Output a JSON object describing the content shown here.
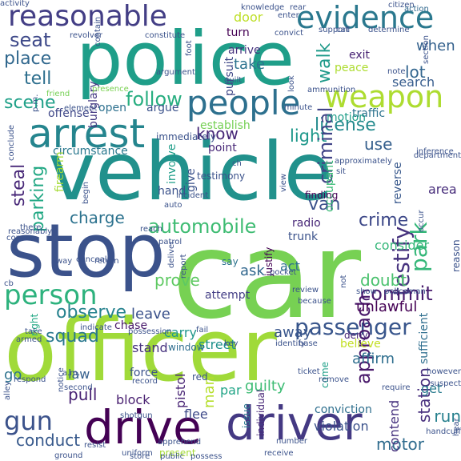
{
  "words": [
    {
      "text": "car",
      "color": "#77d153"
    },
    {
      "text": "officer",
      "color": "#a0da39"
    },
    {
      "text": "vehicle",
      "color": "#21918c"
    },
    {
      "text": "police",
      "color": "#1f9e89"
    },
    {
      "text": "stop",
      "color": "#3b528b"
    },
    {
      "text": "drive",
      "color": "#440154"
    },
    {
      "text": "driver",
      "color": "#443983"
    },
    {
      "text": "arrest",
      "color": "#25858e"
    },
    {
      "text": "people",
      "color": "#2d708e"
    },
    {
      "text": "weapon",
      "color": "#addc30"
    },
    {
      "text": "reasonable",
      "color": "#433e85"
    },
    {
      "text": "evidence",
      "color": "#2a788e"
    },
    {
      "text": "person",
      "color": "#2db27d"
    },
    {
      "text": "passenger",
      "color": "#39568c"
    },
    {
      "text": "testify",
      "color": "#46327e"
    },
    {
      "text": "seat",
      "color": "#3e4989"
    },
    {
      "text": "place",
      "color": "#31688e"
    },
    {
      "text": "tell",
      "color": "#2e6f8e"
    },
    {
      "text": "scene",
      "color": "#1fa088"
    },
    {
      "text": "gun",
      "color": "#3b528b"
    },
    {
      "text": "follow",
      "color": "#28ae80"
    },
    {
      "text": "automobile",
      "color": "#3fbc73"
    },
    {
      "text": "license",
      "color": "#238a8d"
    },
    {
      "text": "light",
      "color": "#1f988b"
    },
    {
      "text": "observe",
      "color": "#26828e"
    },
    {
      "text": "squad",
      "color": "#2a788e"
    },
    {
      "text": "commit",
      "color": "#481b6d"
    },
    {
      "text": "criminal",
      "color": "#414487"
    },
    {
      "text": "van",
      "color": "#3b528b"
    },
    {
      "text": "crime",
      "color": "#3e4989"
    },
    {
      "text": "walk",
      "color": "#1f9a8a"
    },
    {
      "text": "park",
      "color": "#35b779"
    },
    {
      "text": "steal",
      "color": "#482878"
    },
    {
      "text": "parking",
      "color": "#22a884"
    },
    {
      "text": "charge",
      "color": "#2c728e"
    },
    {
      "text": "conduct",
      "color": "#37598c"
    },
    {
      "text": "motor",
      "color": "#2f6c8e"
    },
    {
      "text": "run",
      "color": "#27808e"
    },
    {
      "text": "station",
      "color": "#472f7d"
    },
    {
      "text": "approach",
      "color": "#48186a"
    },
    {
      "text": "man",
      "color": "#b5de2b"
    },
    {
      "text": "pull",
      "color": "#482173"
    },
    {
      "text": "leave",
      "color": "#3b528b"
    },
    {
      "text": "prove",
      "color": "#5ec962"
    },
    {
      "text": "ask",
      "color": "#31678e"
    },
    {
      "text": "unlawful",
      "color": "#440154"
    },
    {
      "text": "doubt",
      "color": "#4ac16d"
    },
    {
      "text": "away",
      "color": "#39568c"
    },
    {
      "text": "know",
      "color": "#482979"
    },
    {
      "text": "use",
      "color": "#355f8d"
    },
    {
      "text": "take",
      "color": "#2c728e"
    },
    {
      "text": "lot",
      "color": "#32658e"
    },
    {
      "text": "when",
      "color": "#34618d"
    },
    {
      "text": "turn",
      "color": "#440154"
    },
    {
      "text": "door",
      "color": "#bddf26"
    },
    {
      "text": "arrive",
      "color": "#46337f"
    },
    {
      "text": "pursuit",
      "color": "#3f4788"
    },
    {
      "text": "burglary",
      "color": "#443983"
    },
    {
      "text": "contend",
      "color": "#46327e"
    },
    {
      "text": "act",
      "color": "#2c728e"
    },
    {
      "text": "pistol",
      "color": "#482475"
    },
    {
      "text": "block",
      "color": "#481f70"
    },
    {
      "text": "law",
      "color": "#355f8d"
    },
    {
      "text": "guilty",
      "color": "#3dbc74"
    },
    {
      "text": "street",
      "color": "#20928c"
    },
    {
      "text": "stand",
      "color": "#46327e"
    },
    {
      "text": "carry",
      "color": "#1f978b"
    },
    {
      "text": "chase",
      "color": "#48186a"
    },
    {
      "text": "attempt",
      "color": "#433e85"
    },
    {
      "text": "believe",
      "color": "#c2df23"
    },
    {
      "text": "affirm",
      "color": "#2e6e8e"
    },
    {
      "text": "go",
      "color": "#2c728e"
    },
    {
      "text": "flee",
      "color": "#3e4a89"
    },
    {
      "text": "par",
      "color": "#20a486"
    },
    {
      "text": "get",
      "color": "#297b8e"
    },
    {
      "text": "area",
      "color": "#472d7b"
    },
    {
      "text": "search",
      "color": "#365c8d"
    },
    {
      "text": "peace",
      "color": "#addc30"
    },
    {
      "text": "exit",
      "color": "#482374"
    },
    {
      "text": "traffic",
      "color": "#2c728e"
    },
    {
      "text": "occupant",
      "color": "#3aba76"
    },
    {
      "text": "reverse",
      "color": "#38588c"
    },
    {
      "text": "consider",
      "color": "#35b779"
    },
    {
      "text": "radio",
      "color": "#482878"
    },
    {
      "text": "trunk",
      "color": "#3b528b"
    },
    {
      "text": "involve",
      "color": "#1f9e89"
    },
    {
      "text": "give",
      "color": "#3b528b"
    },
    {
      "text": "hand",
      "color": "#3b528b"
    },
    {
      "text": "circumstance",
      "color": "#2a788e"
    },
    {
      "text": "open",
      "color": "#2d708e"
    },
    {
      "text": "argue",
      "color": "#3b528b"
    },
    {
      "text": "point",
      "color": "#482878"
    },
    {
      "text": "establish",
      "color": "#75d054"
    },
    {
      "text": "motion",
      "color": "#1f9e89"
    },
    {
      "text": "offense",
      "color": "#3f4788"
    },
    {
      "text": "firearm",
      "color": "#a5db36"
    },
    {
      "text": "justify",
      "color": "#440154"
    },
    {
      "text": "conviction",
      "color": "#2e6f8e"
    },
    {
      "text": "violation",
      "color": "#3b528b"
    },
    {
      "text": "individual",
      "color": "#482878"
    },
    {
      "text": "testimony",
      "color": "#3b528b"
    },
    {
      "text": "deny",
      "color": "#482878"
    },
    {
      "text": "sufficient",
      "color": "#2e6e8e"
    },
    {
      "text": "come",
      "color": "#1fa088"
    },
    {
      "text": "issue",
      "color": "#2a788e"
    },
    {
      "text": "right",
      "color": "#22a884"
    },
    {
      "text": "window",
      "color": "#2e6e8e"
    },
    {
      "text": "red",
      "color": "#3b528b"
    },
    {
      "text": "force",
      "color": "#3b528b"
    },
    {
      "text": "say",
      "color": "#2c728e"
    },
    {
      "text": "finding",
      "color": "#440154"
    },
    {
      "text": "reason",
      "color": "#3b528b"
    },
    {
      "text": "present",
      "color": "#a5db36"
    },
    {
      "text": "rear",
      "color": "#3b528b"
    },
    {
      "text": "knowledge",
      "color": "#3b528b"
    },
    {
      "text": "enter",
      "color": "#3b528b"
    },
    {
      "text": "citizen",
      "color": "#3b528b"
    },
    {
      "text": "action",
      "color": "#31688e"
    },
    {
      "text": "revolver",
      "color": "#3b528b"
    },
    {
      "text": "constitute",
      "color": "#3b528b"
    },
    {
      "text": "convict",
      "color": "#3b528b"
    },
    {
      "text": "support",
      "color": "#3b528b"
    },
    {
      "text": "call",
      "color": "#3b528b"
    },
    {
      "text": "determine",
      "color": "#3b528b"
    },
    {
      "text": "section",
      "color": "#3b528b"
    },
    {
      "text": "contain",
      "color": "#3b528b"
    },
    {
      "text": "presence",
      "color": "#7ad151"
    },
    {
      "text": "argument",
      "color": "#3b528b"
    },
    {
      "text": "guilt",
      "color": "#3b528b"
    },
    {
      "text": "note",
      "color": "#3b528b"
    },
    {
      "text": "ammunition",
      "color": "#3b528b"
    },
    {
      "text": "look",
      "color": "#3b528b"
    },
    {
      "text": "foot",
      "color": "#3b528b"
    },
    {
      "text": "inference",
      "color": "#3b528b"
    },
    {
      "text": "department",
      "color": "#3b528b"
    },
    {
      "text": "minute",
      "color": "#3b528b"
    },
    {
      "text": "sit",
      "color": "#3b528b"
    },
    {
      "text": "approximately",
      "color": "#3b528b"
    },
    {
      "text": "view",
      "color": "#3b528b"
    },
    {
      "text": "incident",
      "color": "#3b528b"
    },
    {
      "text": "immediately",
      "color": "#3b528b"
    },
    {
      "text": "ch",
      "color": "#3b528b"
    },
    {
      "text": "friend",
      "color": "#75d054"
    },
    {
      "text": "p.m.",
      "color": "#3b528b"
    },
    {
      "text": "element",
      "color": "#3b528b"
    },
    {
      "text": "conclude",
      "color": "#3b528b"
    },
    {
      "text": "begin",
      "color": "#3b528b"
    },
    {
      "text": "auto",
      "color": "#3b528b"
    },
    {
      "text": "reasonably",
      "color": "#3b528b"
    },
    {
      "text": "concur",
      "color": "#3b528b"
    },
    {
      "text": "there",
      "color": "#3b528b"
    },
    {
      "text": "reach",
      "color": "#3b528b"
    },
    {
      "text": "patrol",
      "color": "#3b528b"
    },
    {
      "text": "occur",
      "color": "#3b528b"
    },
    {
      "text": "conceal",
      "color": "#3b528b"
    },
    {
      "text": "cb",
      "color": "#3b528b"
    },
    {
      "text": "way",
      "color": "#3b528b"
    },
    {
      "text": "return",
      "color": "#3b528b"
    },
    {
      "text": "pocket",
      "color": "#3b528b"
    },
    {
      "text": "review",
      "color": "#3b528b"
    },
    {
      "text": "because",
      "color": "#3b528b"
    },
    {
      "text": "not",
      "color": "#3b528b"
    },
    {
      "text": "show",
      "color": "#3b528b"
    },
    {
      "text": "policeman",
      "color": "#3b528b"
    },
    {
      "text": "deliver",
      "color": "#3b528b"
    },
    {
      "text": "report",
      "color": "#3b528b"
    },
    {
      "text": "take",
      "color": "#3b528b"
    },
    {
      "text": "indicate",
      "color": "#3b528b"
    },
    {
      "text": "possession",
      "color": "#3b528b"
    },
    {
      "text": "fail",
      "color": "#3b528b"
    },
    {
      "text": "armed",
      "color": "#3b528b"
    },
    {
      "text": "key",
      "color": "#3b528b"
    },
    {
      "text": "identify",
      "color": "#3b528b"
    },
    {
      "text": "base",
      "color": "#3b528b"
    },
    {
      "text": "respond",
      "color": "#3b528b"
    },
    {
      "text": "a.m.",
      "color": "#3b528b"
    },
    {
      "text": "record",
      "color": "#3b528b"
    },
    {
      "text": "second",
      "color": "#3b528b"
    },
    {
      "text": "ticket",
      "color": "#3b528b"
    },
    {
      "text": "remove",
      "color": "#3b528b"
    },
    {
      "text": "require",
      "color": "#3b528b"
    },
    {
      "text": "however",
      "color": "#3b528b"
    },
    {
      "text": "suspect",
      "color": "#3b528b"
    },
    {
      "text": "notice",
      "color": "#3b528b"
    },
    {
      "text": "alley",
      "color": "#3b528b"
    },
    {
      "text": "shotgun",
      "color": "#3b528b"
    },
    {
      "text": "apprehend",
      "color": "#3b528b"
    },
    {
      "text": "number",
      "color": "#3b528b"
    },
    {
      "text": "handcuff",
      "color": "#3b528b"
    },
    {
      "text": "ground",
      "color": "#3b528b"
    },
    {
      "text": "resist",
      "color": "#3b528b"
    },
    {
      "text": "uniform",
      "color": "#3b528b"
    },
    {
      "text": "store",
      "color": "#3b528b"
    },
    {
      "text": "public",
      "color": "#3b528b"
    },
    {
      "text": "possess",
      "color": "#3b528b"
    },
    {
      "text": "receive",
      "color": "#3b528b"
    },
    {
      "text": "hear",
      "color": "#3b528b"
    },
    {
      "text": "activity",
      "color": "#3b528b"
    }
  ]
}
